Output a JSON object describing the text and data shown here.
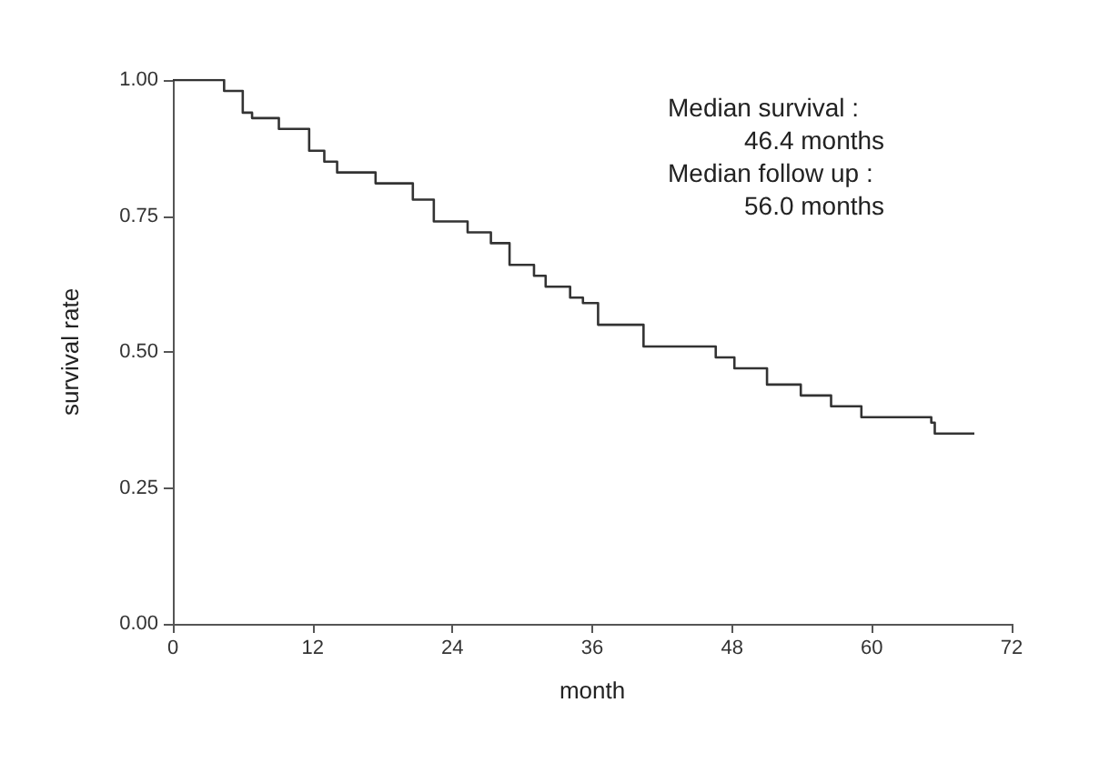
{
  "chart_data": {
    "type": "step",
    "xlabel": "month",
    "ylabel": "survival rate",
    "x": [
      0,
      3.1,
      4.4,
      6.0,
      6.8,
      9.1,
      11.7,
      13.0,
      14.1,
      17.4,
      19.3,
      20.6,
      22.4,
      25.3,
      27.3,
      28.9,
      31.0,
      32.0,
      34.1,
      35.2,
      36.5,
      40.4,
      44.0,
      46.6,
      48.2,
      50.3,
      51.0,
      53.9,
      56.5,
      59.1,
      65.1,
      65.4,
      68.8
    ],
    "series": [
      {
        "color": "#333333",
        "values": [
          1.0,
          1.0,
          0.98,
          0.94,
          0.93,
          0.91,
          0.87,
          0.85,
          0.83,
          0.81,
          0.81,
          0.78,
          0.74,
          0.72,
          0.7,
          0.66,
          0.64,
          0.62,
          0.6,
          0.59,
          0.55,
          0.51,
          0.51,
          0.49,
          0.47,
          0.47,
          0.44,
          0.42,
          0.4,
          0.38,
          0.37,
          0.35,
          0.35
        ]
      }
    ],
    "xlim": [
      0,
      72
    ],
    "xticks": [
      0,
      12,
      24,
      36,
      48,
      60,
      72
    ],
    "ylim": [
      0,
      1
    ],
    "yticks": [
      {
        "value": 0,
        "label": "0.00"
      },
      {
        "value": 0.25,
        "label": "0.25"
      },
      {
        "value": 0.5,
        "label": "0.50"
      },
      {
        "value": 0.75,
        "label": "0.75"
      },
      {
        "value": 1,
        "label": "1.00"
      }
    ],
    "grid": false,
    "marker": "none",
    "line_style": "solid",
    "annotations": [
      "Median survival :",
      "46.4 months",
      "Median follow up :",
      "56.0 months"
    ]
  }
}
